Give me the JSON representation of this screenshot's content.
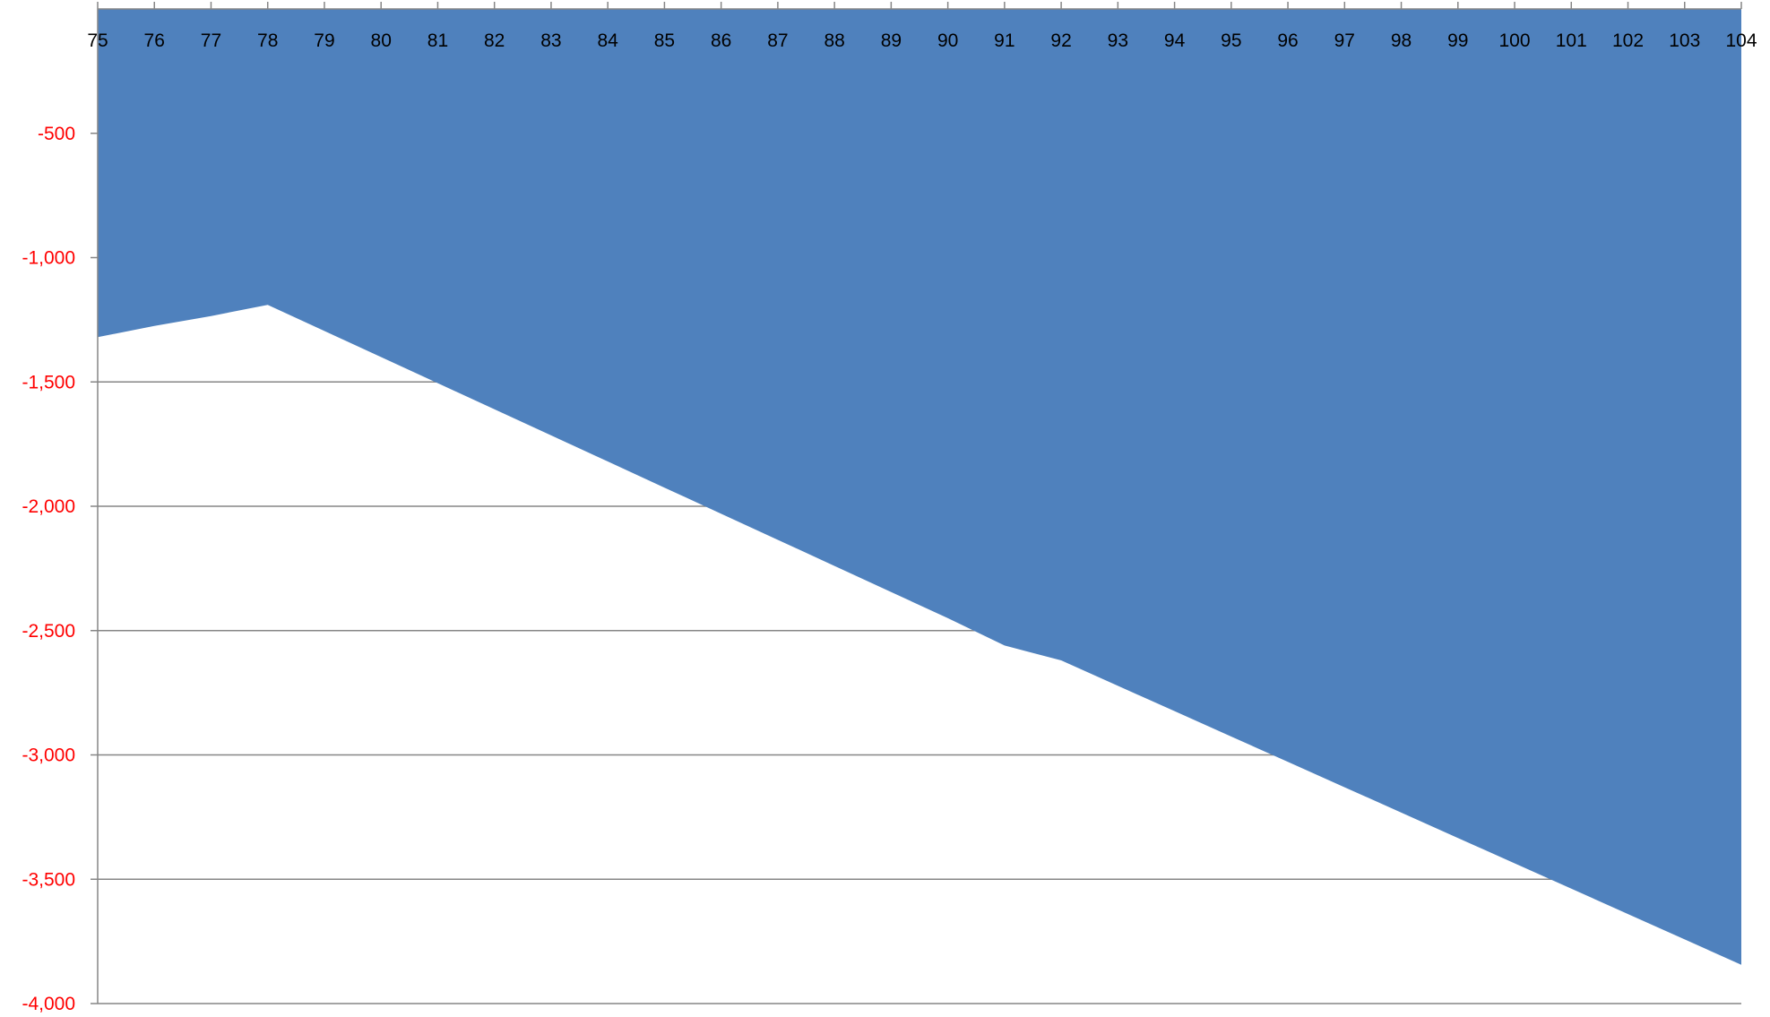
{
  "chart_data": {
    "type": "area",
    "title": "",
    "xlabel": "",
    "ylabel": "",
    "x": [
      75,
      76,
      77,
      78,
      79,
      80,
      81,
      82,
      83,
      84,
      85,
      86,
      87,
      88,
      89,
      90,
      91,
      92,
      93,
      94,
      95,
      96,
      97,
      98,
      99,
      100,
      101,
      102,
      103,
      104
    ],
    "x_tick_labels": [
      "75",
      "76",
      "77",
      "78",
      "79",
      "80",
      "81",
      "82",
      "83",
      "84",
      "85",
      "86",
      "87",
      "88",
      "89",
      "90",
      "91",
      "92",
      "93",
      "94",
      "95",
      "96",
      "97",
      "98",
      "99",
      "100",
      "101",
      "102",
      "103",
      "104"
    ],
    "series": [
      {
        "values": [
          -1320,
          -1275,
          -1235,
          -1190,
          -1295,
          -1400,
          -1505,
          -1610,
          -1715,
          -1820,
          -1925,
          -2030,
          -2135,
          -2240,
          -2345,
          -2450,
          -2560,
          -2620,
          -2722,
          -2824,
          -2926,
          -3028,
          -3130,
          -3232,
          -3334,
          -3436,
          -3538,
          -3640,
          -3742,
          -3844
        ],
        "color": "#4f81bd"
      }
    ],
    "ylim": [
      -4000,
      0
    ],
    "y_ticks": [
      -500,
      -1000,
      -1500,
      -2000,
      -2500,
      -3000,
      -3500,
      -4000
    ],
    "y_tick_labels": [
      "-500",
      "-1,000",
      "-1,500",
      "-2,000",
      "-2,500",
      "-3,000",
      "-3,500",
      "-4,000"
    ],
    "x_axis_position": "top",
    "grid": true,
    "legend": "none",
    "colors": {
      "fill": "#4f81bd",
      "gridline": "#868686",
      "axis": "#868686",
      "y_tick_text": "#ff0000",
      "x_tick_text": "#000000"
    }
  }
}
